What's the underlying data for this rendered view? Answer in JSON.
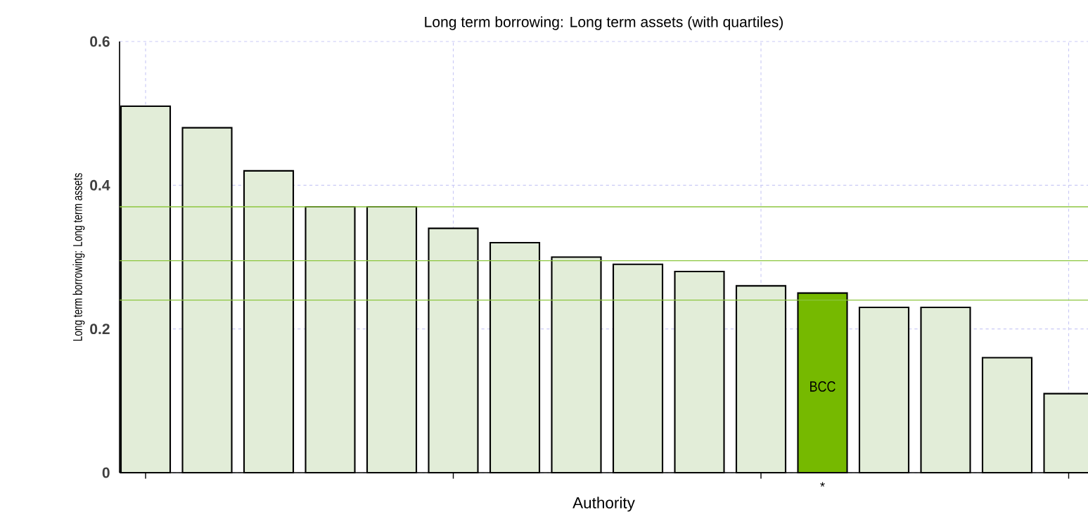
{
  "chart_data": {
    "type": "bar",
    "title": "Long term borrowing: Long term assets (with quartiles)",
    "xlabel": "Authority",
    "ylabel": "Long term borrowing: Long term assets",
    "categories": [
      null,
      null,
      null,
      null,
      null,
      null,
      null,
      null,
      null,
      null,
      null,
      "*",
      null,
      null,
      null,
      null
    ],
    "values": [
      0.51,
      0.48,
      0.42,
      0.37,
      0.37,
      0.34,
      0.32,
      0.3,
      0.29,
      0.28,
      0.26,
      0.25,
      0.23,
      0.23,
      0.16,
      0.11
    ],
    "colors": [
      "#e2edd8",
      "#e2edd8",
      "#e2edd8",
      "#e2edd8",
      "#e2edd8",
      "#e2edd8",
      "#e2edd8",
      "#e2edd8",
      "#e2edd8",
      "#e2edd8",
      "#e2edd8",
      "#76b900",
      "#e2edd8",
      "#e2edd8",
      "#e2edd8",
      "#e2edd8"
    ],
    "ylim": [
      0,
      0.6
    ],
    "yticks": [
      0,
      0.2,
      0.4,
      0.6
    ],
    "grid": true,
    "ref_lines": [
      {
        "axis": "y",
        "value": 0.37,
        "color": "#8cc63f"
      },
      {
        "axis": "y",
        "value": 0.295,
        "color": "#8cc63f"
      },
      {
        "axis": "y",
        "value": 0.24,
        "color": "#8cc63f"
      }
    ],
    "annotations": [
      "BCC"
    ]
  }
}
